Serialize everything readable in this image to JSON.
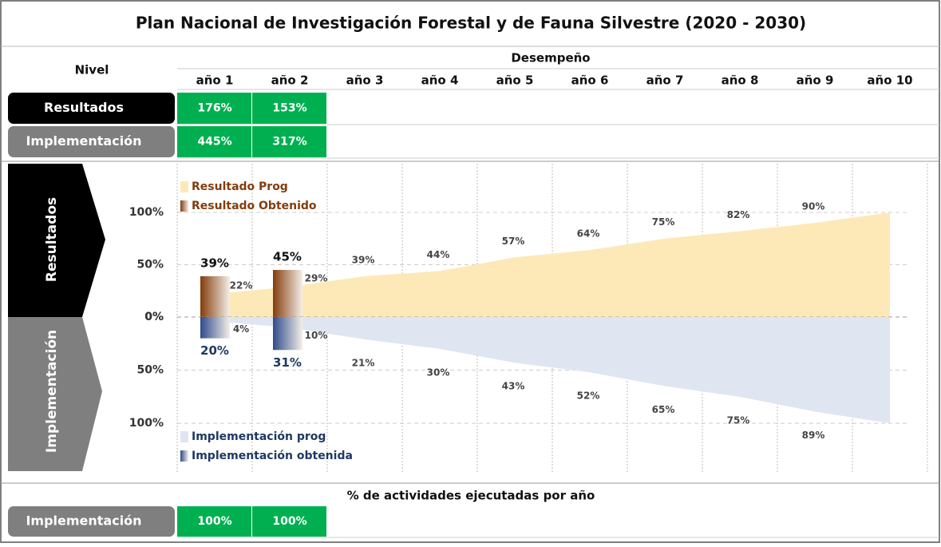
{
  "title": "Plan Nacional de Investigación Forestal y de Fauna Silvestre (2020 - 2030)",
  "table": {
    "level_header": "Nivel",
    "group_header": "Desempeño",
    "years": [
      "año 1",
      "año 2",
      "año 3",
      "año 4",
      "año 5",
      "año 6",
      "año 7",
      "año 8",
      "año 9",
      "año 10"
    ],
    "rows": [
      {
        "label": "Resultados",
        "values": [
          "176%",
          "153%"
        ]
      },
      {
        "label": "Implementación",
        "values": [
          "445%",
          "317%"
        ]
      }
    ]
  },
  "chart_data": [
    {
      "type": "area_bar",
      "label": "Resultados",
      "inverted": false,
      "grid": true,
      "ylim": [
        0,
        145
      ],
      "yticks": [
        {
          "value": 0,
          "label": "0%"
        },
        {
          "value": 50,
          "label": "50%"
        },
        {
          "value": 100,
          "label": "100%"
        }
      ],
      "series": [
        {
          "name": "Resultado Prog",
          "color": "#fde9b8",
          "values": [
            22,
            29,
            39,
            44,
            57,
            64,
            75,
            82,
            90,
            100
          ],
          "value_labels": [
            "22%",
            "29%",
            "39%",
            "44%",
            "57%",
            "64%",
            "75%",
            "82%",
            "90%",
            null
          ]
        },
        {
          "name": "Resultado Obtenido",
          "color": "#843c0c",
          "values": [
            39,
            45,
            null,
            null,
            null,
            null,
            null,
            null,
            null,
            null
          ],
          "value_labels": [
            "39%",
            "45%",
            null,
            null,
            null,
            null,
            null,
            null,
            null,
            null
          ]
        }
      ]
    },
    {
      "type": "area_bar",
      "label": "Implementación",
      "inverted": true,
      "grid": true,
      "ylim": [
        0,
        145
      ],
      "yticks": [
        {
          "value": 0,
          "label": "0%"
        },
        {
          "value": 50,
          "label": "50%"
        },
        {
          "value": 100,
          "label": "100%"
        }
      ],
      "series": [
        {
          "name": "Implementación prog",
          "color": "#dfe5f1",
          "values": [
            4,
            10,
            21,
            30,
            43,
            52,
            65,
            75,
            89,
            100
          ],
          "value_labels": [
            "4%",
            "10%",
            "21%",
            "30%",
            "43%",
            "52%",
            "65%",
            "75%",
            "89%",
            null
          ]
        },
        {
          "name": "Implementación obtenida",
          "color": "#2f4b8c",
          "values": [
            20,
            31,
            null,
            null,
            null,
            null,
            null,
            null,
            null,
            null
          ],
          "value_labels": [
            "20%",
            "31%",
            null,
            null,
            null,
            null,
            null,
            null,
            null,
            null
          ]
        }
      ]
    }
  ],
  "footer": {
    "title": "% de actividades ejecutadas por año",
    "rows": [
      {
        "label": "Implementación",
        "values": [
          "100%",
          "100%"
        ]
      }
    ]
  }
}
